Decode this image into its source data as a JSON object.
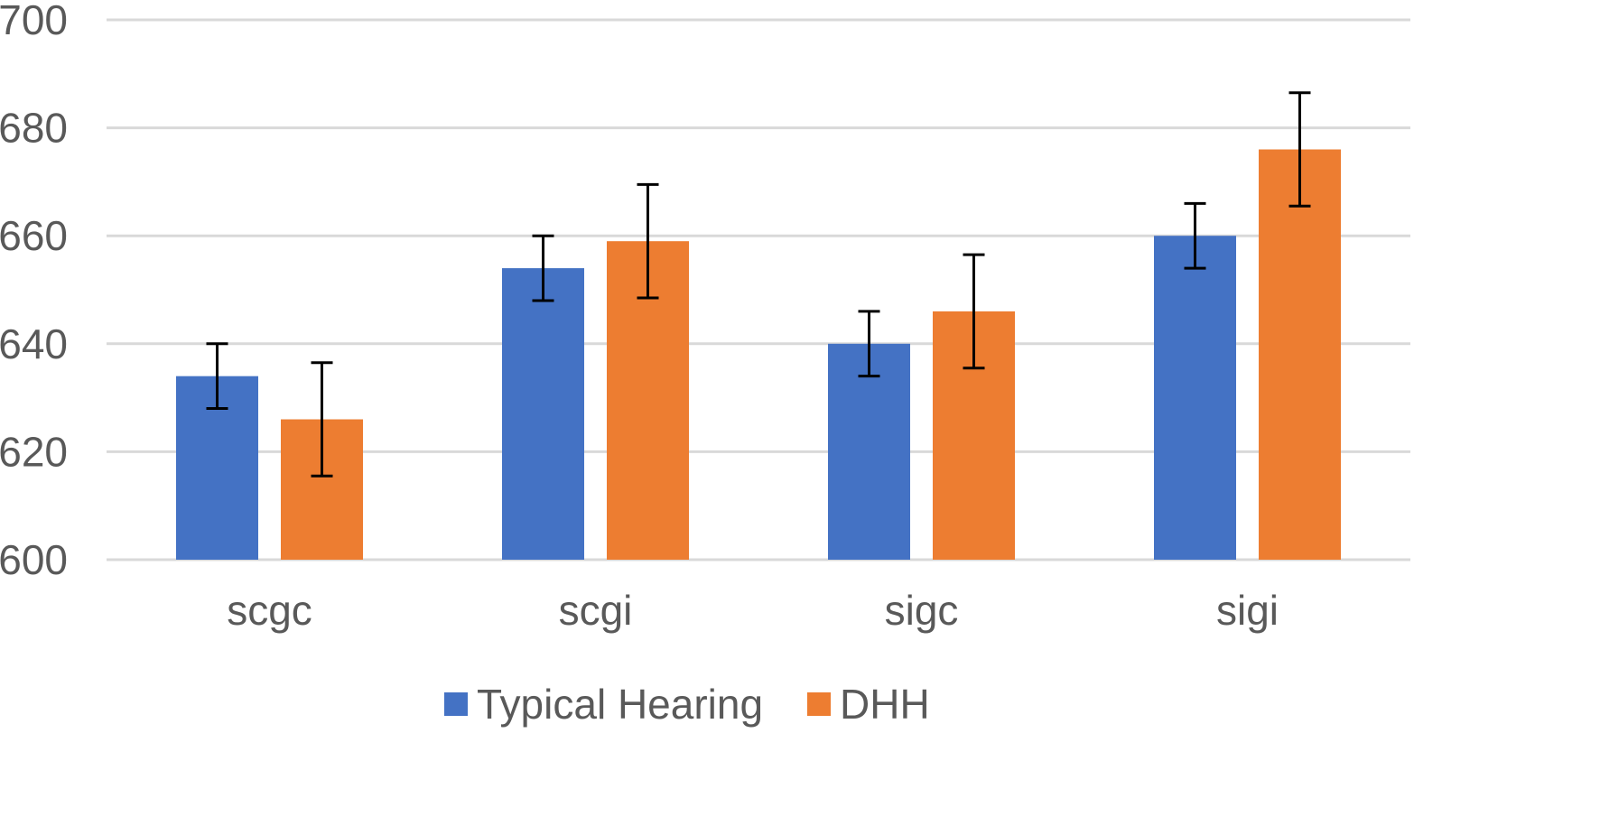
{
  "chart_data": {
    "type": "bar",
    "title": "",
    "xlabel": "",
    "ylabel": "",
    "ylim": [
      600,
      700
    ],
    "yticks": [
      600,
      620,
      640,
      660,
      680,
      700
    ],
    "grid": true,
    "legend_position": "bottom",
    "categories": [
      "scgc",
      "scgi",
      "sigc",
      "sigi"
    ],
    "series": [
      {
        "name": "Typical Hearing",
        "color": "#4472C4",
        "values": [
          634,
          654,
          640,
          660
        ],
        "errors": [
          6,
          6,
          6,
          6
        ]
      },
      {
        "name": "DHH",
        "color": "#ED7D31",
        "values": [
          626,
          659,
          646,
          676
        ],
        "errors": [
          10.5,
          10.5,
          10.5,
          10.5
        ]
      }
    ]
  }
}
